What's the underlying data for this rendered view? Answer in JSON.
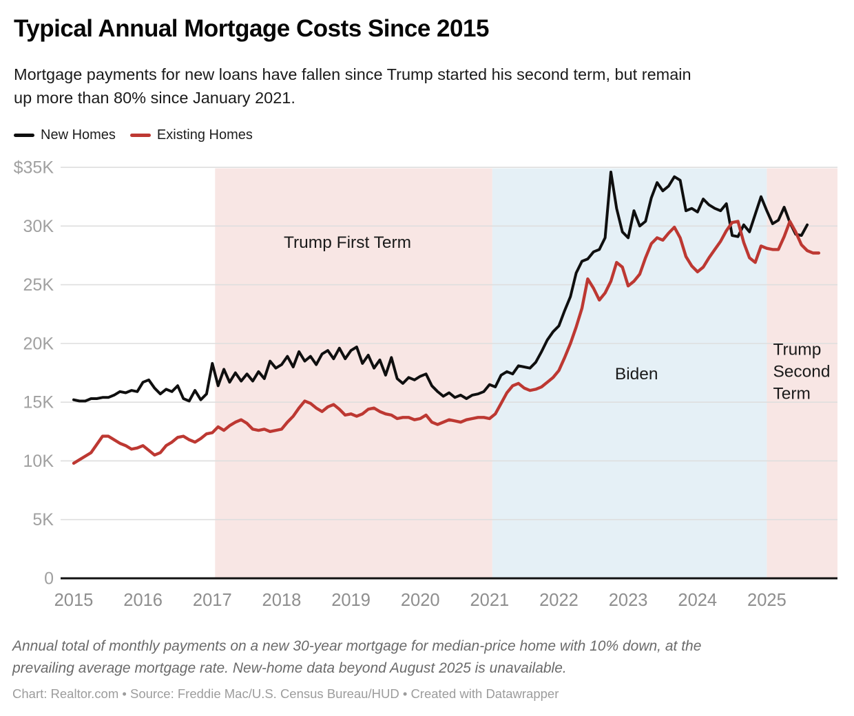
{
  "header": {
    "title": "Typical Annual Mortgage Costs Since 2015",
    "subtitle_lines": [
      "Mortgage payments for new loans have fallen since Trump started his second term, but remain",
      "up more than 80% since January 2021."
    ]
  },
  "legend": {
    "items": [
      {
        "label": "New Homes",
        "color": "#0f0f0f"
      },
      {
        "label": "Existing Homes",
        "color": "#bd3832"
      }
    ]
  },
  "chart_data": {
    "type": "line",
    "title": "Typical Annual Mortgage Costs Since 2015",
    "xlabel": "",
    "ylabel": "",
    "x_start_year": 2015,
    "x_start_month": 1,
    "x_unit": "month",
    "ylim": [
      0,
      35000
    ],
    "grid": true,
    "legend_position": "top-left",
    "y_ticks": [
      {
        "value": 0,
        "label": "0"
      },
      {
        "value": 5000,
        "label": "5K"
      },
      {
        "value": 10000,
        "label": "10K"
      },
      {
        "value": 15000,
        "label": "15K"
      },
      {
        "value": 20000,
        "label": "20K"
      },
      {
        "value": 25000,
        "label": "25K"
      },
      {
        "value": 30000,
        "label": "30K"
      },
      {
        "value": 35000,
        "label": "$35K"
      }
    ],
    "x_ticks": [
      {
        "value": 2015,
        "label": "2015"
      },
      {
        "value": 2016,
        "label": "2016"
      },
      {
        "value": 2017,
        "label": "2017"
      },
      {
        "value": 2018,
        "label": "2018"
      },
      {
        "value": 2019,
        "label": "2019"
      },
      {
        "value": 2020,
        "label": "2020"
      },
      {
        "value": 2021,
        "label": "2021"
      },
      {
        "value": 2022,
        "label": "2022"
      },
      {
        "value": 2023,
        "label": "2023"
      },
      {
        "value": 2024,
        "label": "2024"
      },
      {
        "value": 2025,
        "label": "2025"
      }
    ],
    "bands": [
      {
        "label": "Trump First Term",
        "label_lines": [
          "Trump First Term"
        ],
        "from": 2017.04,
        "to": 2021.04,
        "color": "#f8e6e4",
        "label_x": 2018.95,
        "label_y": 28600,
        "label_anchor": "middle"
      },
      {
        "label": "Biden",
        "label_lines": [
          "Biden"
        ],
        "from": 2021.04,
        "to": 2025.0,
        "color": "#e5f0f6",
        "label_x": 2023.12,
        "label_y": 17400,
        "label_anchor": "middle"
      },
      {
        "label": "Trump Second Term",
        "label_lines": [
          "Trump",
          "Second",
          "Term"
        ],
        "from": 2025.0,
        "to": "end",
        "color": "#f8e6e4",
        "label_x": 2025.09,
        "label_y": 19500,
        "label_anchor": "start"
      }
    ],
    "series": [
      {
        "name": "New Homes",
        "color": "#0f0f0f",
        "stroke_width": 4,
        "values": [
          15200,
          15100,
          15100,
          15300,
          15300,
          15400,
          15400,
          15600,
          15900,
          15800,
          16000,
          15900,
          16700,
          16900,
          16200,
          15700,
          16100,
          15900,
          16400,
          15300,
          15100,
          16000,
          15200,
          15700,
          18300,
          16400,
          17800,
          16700,
          17500,
          16800,
          17400,
          16800,
          17600,
          17000,
          18500,
          17900,
          18200,
          18900,
          18000,
          19300,
          18500,
          18900,
          18200,
          19100,
          19400,
          18700,
          19600,
          18700,
          19400,
          19700,
          18300,
          19000,
          17900,
          18600,
          17300,
          18800,
          17000,
          16600,
          17100,
          16900,
          17200,
          17400,
          16400,
          15900,
          15500,
          15800,
          15400,
          15600,
          15300,
          15600,
          15700,
          15900,
          16500,
          16300,
          17300,
          17600,
          17400,
          18100,
          18000,
          17900,
          18400,
          19300,
          20300,
          21000,
          21500,
          22800,
          24000,
          26000,
          27000,
          27200,
          27800,
          28000,
          29000,
          34600,
          31500,
          29500,
          29000,
          31300,
          30000,
          30400,
          32400,
          33700,
          33000,
          33400,
          34200,
          33900,
          31300,
          31500,
          31200,
          32300,
          31800,
          31500,
          31300,
          31900,
          29200,
          29100,
          30100,
          29500,
          31000,
          32500,
          31300,
          30200,
          30500,
          31600,
          30300,
          29300,
          29200,
          30100
        ]
      },
      {
        "name": "Existing Homes",
        "color": "#bd3832",
        "stroke_width": 4.4,
        "values": [
          9800,
          10100,
          10400,
          10700,
          11400,
          12100,
          12100,
          11800,
          11500,
          11300,
          11000,
          11100,
          11300,
          10900,
          10500,
          10700,
          11300,
          11600,
          12000,
          12100,
          11800,
          11600,
          11900,
          12300,
          12400,
          12900,
          12600,
          13000,
          13300,
          13500,
          13200,
          12700,
          12600,
          12700,
          12500,
          12600,
          12700,
          13300,
          13800,
          14500,
          15100,
          14900,
          14500,
          14200,
          14600,
          14800,
          14400,
          13900,
          14000,
          13800,
          14000,
          14400,
          14500,
          14200,
          14000,
          13900,
          13600,
          13700,
          13700,
          13500,
          13600,
          13900,
          13300,
          13100,
          13300,
          13500,
          13400,
          13300,
          13500,
          13600,
          13700,
          13700,
          13600,
          14000,
          14900,
          15800,
          16400,
          16600,
          16200,
          16000,
          16100,
          16300,
          16700,
          17100,
          17700,
          18800,
          20000,
          21400,
          23000,
          25500,
          24700,
          23700,
          24300,
          25300,
          26900,
          26500,
          24900,
          25300,
          25900,
          27300,
          28500,
          29000,
          28800,
          29400,
          29900,
          29000,
          27400,
          26600,
          26100,
          26500,
          27300,
          28000,
          28700,
          29600,
          30300,
          30400,
          28600,
          27300,
          26900,
          28300,
          28100,
          28000,
          28000,
          29100,
          30400,
          29500,
          28400,
          27900,
          27700,
          27700
        ]
      }
    ]
  },
  "footer": {
    "note_lines": [
      "Annual total of monthly payments on a new 30-year mortgage for median-price home with 10% down, at the",
      "prevailing average mortgage rate. New-home data beyond August 2025 is unavailable."
    ],
    "credit": "Chart: Realtor.com • Source: Freddie Mac/U.S. Census Bureau/HUD • Created with Datawrapper"
  }
}
